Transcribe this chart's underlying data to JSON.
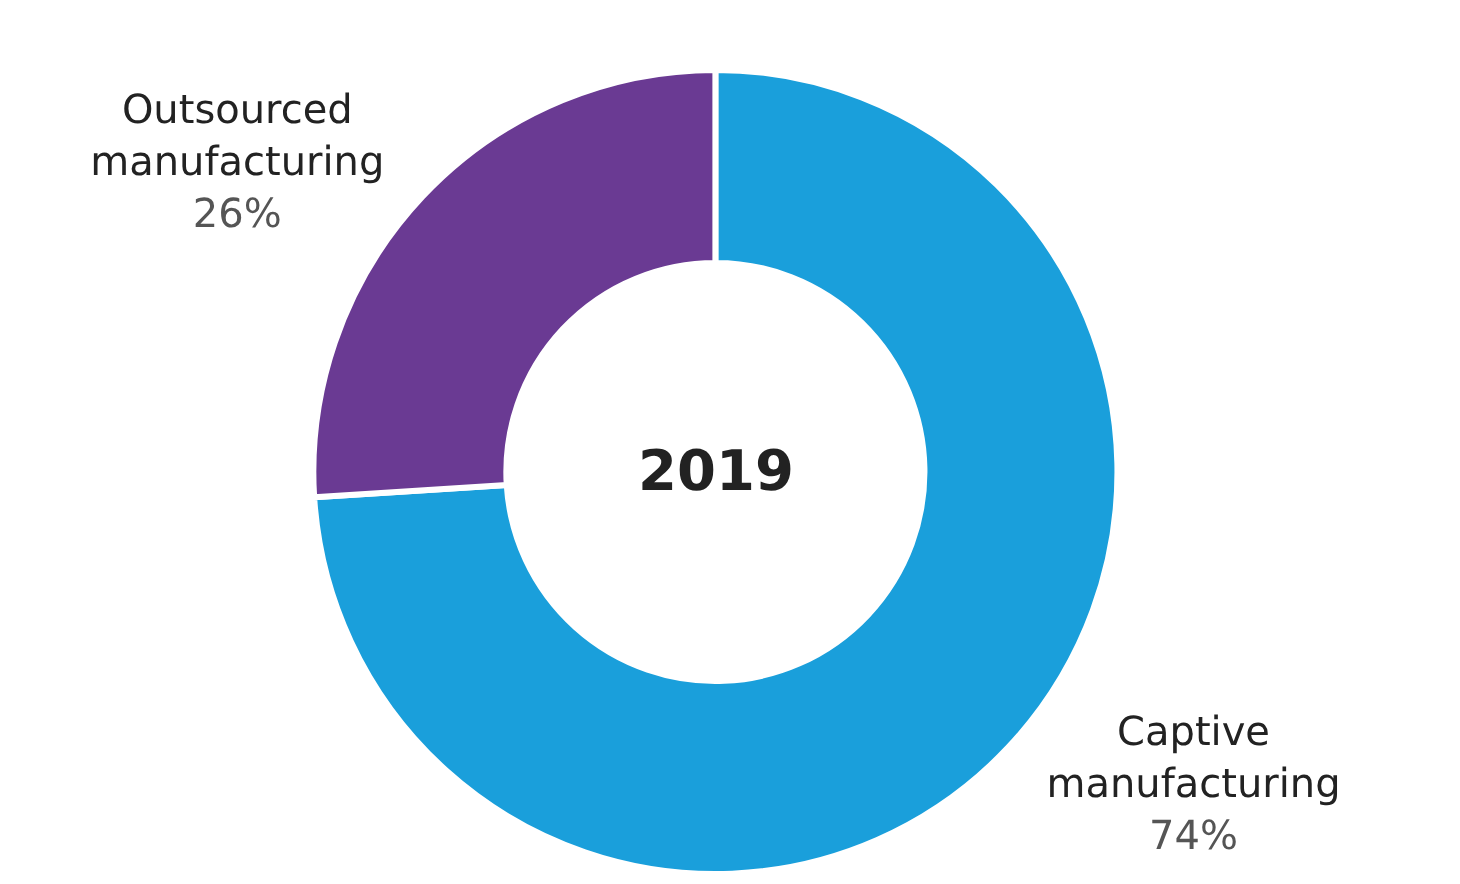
{
  "chart_data": {
    "type": "donut",
    "title": "2019",
    "categories": [
      "Captive\nmanufacturing",
      "Outsourced\nmanufacturing"
    ],
    "values": [
      74,
      26
    ],
    "colors": [
      "#1a9fdb",
      "#6a3a93"
    ],
    "value_labels": [
      "74%",
      "26%"
    ],
    "legend": false
  }
}
